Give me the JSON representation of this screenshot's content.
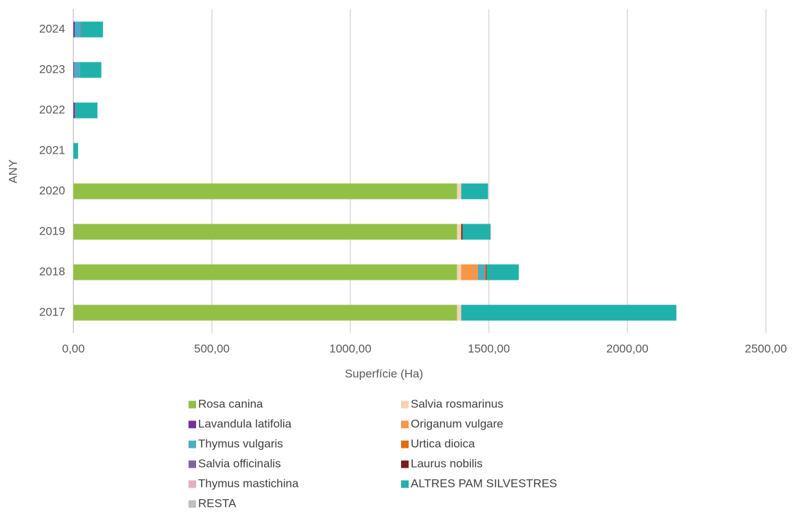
{
  "chart_data": {
    "type": "hbar_stacked",
    "x_label": "Superfície (Ha)",
    "y_label": "ANY",
    "categories": [
      "2017",
      "2018",
      "2019",
      "2020",
      "2021",
      "2022",
      "2023",
      "2024"
    ],
    "series": [
      {
        "name": "Rosa canina",
        "color": "#92c047",
        "values": [
          1385,
          1385,
          1385,
          1385,
          0,
          0,
          0,
          0
        ]
      },
      {
        "name": "Salvia rosmarinus",
        "color": "#f8d3b0",
        "values": [
          15,
          15,
          15,
          15,
          0,
          0,
          0,
          0
        ]
      },
      {
        "name": "Lavandula latifolia",
        "color": "#7030a0",
        "values": [
          0,
          0,
          0,
          0,
          0,
          5,
          3,
          5
        ]
      },
      {
        "name": "Origanum vulgare",
        "color": "#f79646",
        "values": [
          0,
          60,
          0,
          0,
          0,
          0,
          0,
          0
        ]
      },
      {
        "name": "Thymus vulgaris",
        "color": "#4bacc6",
        "values": [
          0,
          25,
          0,
          0,
          0,
          0,
          20,
          20
        ]
      },
      {
        "name": "Urtica dioica",
        "color": "#e36c09",
        "values": [
          0,
          5,
          0,
          0,
          0,
          0,
          0,
          0
        ]
      },
      {
        "name": "Salvia officinalis",
        "color": "#8064a2",
        "values": [
          0,
          0,
          0,
          0,
          0,
          2,
          0,
          2
        ]
      },
      {
        "name": "Laurus nobilis",
        "color": "#7b1c1c",
        "values": [
          0,
          2,
          5,
          0,
          0,
          0,
          0,
          0
        ]
      },
      {
        "name": "Thymus mastichina",
        "color": "#e6b0b8",
        "values": [
          0,
          0,
          0,
          0,
          0,
          0,
          0,
          0
        ]
      },
      {
        "name": "ALTRES PAM SILVESTRES",
        "color": "#20b2aa",
        "values": [
          777,
          116,
          100,
          97,
          17,
          80,
          78,
          80
        ]
      },
      {
        "name": "RESTA",
        "color": "#bfbfbf",
        "values": [
          0,
          0,
          3,
          0,
          0,
          0,
          0,
          0
        ]
      }
    ],
    "xlim": [
      0,
      2500
    ],
    "xticks": [
      {
        "value": 0,
        "label": "0,00"
      },
      {
        "value": 500,
        "label": "500,00"
      },
      {
        "value": 1000,
        "label": "1000,00"
      },
      {
        "value": 1500,
        "label": "1500,00"
      },
      {
        "value": 2000,
        "label": "2000,00"
      },
      {
        "value": 2500,
        "label": "2500,00"
      }
    ],
    "grid": true
  }
}
